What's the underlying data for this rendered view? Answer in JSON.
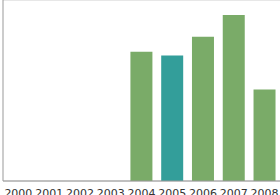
{
  "chart_data": {
    "type": "bar",
    "categories": [
      "2000",
      "2001",
      "2002",
      "2003",
      "2004",
      "2005",
      "2006",
      "2007",
      "2008"
    ],
    "values": [
      null,
      null,
      null,
      null,
      5.0,
      4.85,
      5.58,
      6.42,
      3.54
    ],
    "colors": [
      "#7aab68",
      "#7aab68",
      "#7aab68",
      "#7aab68",
      "#7aab68",
      "#339e9a",
      "#7aab68",
      "#7aab68",
      "#7aab68"
    ],
    "ylim": [
      0,
      7
    ],
    "yticks": [
      0,
      1,
      2,
      3,
      4,
      5,
      6,
      7
    ],
    "grid": true,
    "tick_labels": "x"
  }
}
